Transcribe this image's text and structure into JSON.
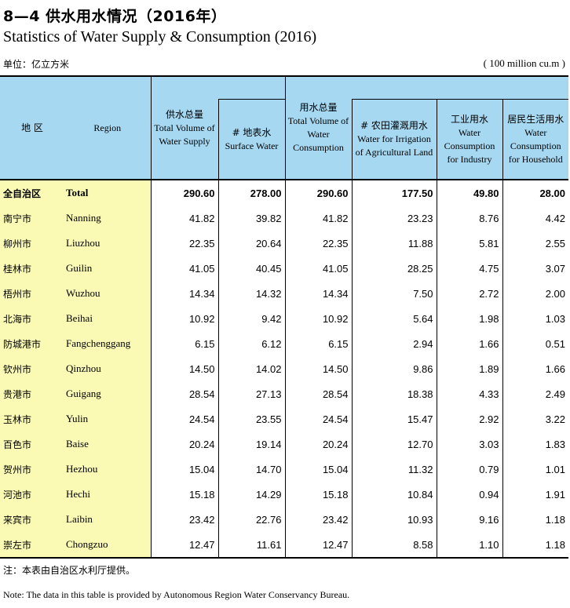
{
  "title_cn": "8—4 供水用水情况（2016年）",
  "title_en": "Statistics of Water Supply & Consumption (2016)",
  "unit_cn": "单位：亿立方米",
  "unit_en": "( 100 million cu.m )",
  "headers": {
    "region_cn": "地 区",
    "region_en": "Region",
    "supply_cn": "供水总量",
    "supply_en": "Total Volume of Water Supply",
    "surface_cn": "# 地表水",
    "surface_en": "Surface Water",
    "consumption_cn": "用水总量",
    "consumption_en": "Total Volume of Water Consumption",
    "irrigation_cn": "# 农田灌溉用水",
    "irrigation_en": "Water for Irrigation of Agricultural Land",
    "industry_cn": "工业用水",
    "industry_en": "Water Consumption for Industry",
    "household_cn": "居民生活用水",
    "household_en": "Water Consumption for Household"
  },
  "rows": [
    {
      "cn": "全自治区",
      "en": "Total",
      "supply": "290.60",
      "surface": "278.00",
      "consumption": "290.60",
      "irrigation": "177.50",
      "industry": "49.80",
      "household": "28.00"
    },
    {
      "cn": "南宁市",
      "en": "Nanning",
      "supply": "41.82",
      "surface": "39.82",
      "consumption": "41.82",
      "irrigation": "23.23",
      "industry": "8.76",
      "household": "4.42"
    },
    {
      "cn": "柳州市",
      "en": "Liuzhou",
      "supply": "22.35",
      "surface": "20.64",
      "consumption": "22.35",
      "irrigation": "11.88",
      "industry": "5.81",
      "household": "2.55"
    },
    {
      "cn": "桂林市",
      "en": "Guilin",
      "supply": "41.05",
      "surface": "40.45",
      "consumption": "41.05",
      "irrigation": "28.25",
      "industry": "4.75",
      "household": "3.07"
    },
    {
      "cn": "梧州市",
      "en": "Wuzhou",
      "supply": "14.34",
      "surface": "14.32",
      "consumption": "14.34",
      "irrigation": "7.50",
      "industry": "2.72",
      "household": "2.00"
    },
    {
      "cn": "北海市",
      "en": "Beihai",
      "supply": "10.92",
      "surface": "9.42",
      "consumption": "10.92",
      "irrigation": "5.64",
      "industry": "1.98",
      "household": "1.03"
    },
    {
      "cn": "防城港市",
      "en": "Fangchenggang",
      "supply": "6.15",
      "surface": "6.12",
      "consumption": "6.15",
      "irrigation": "2.94",
      "industry": "1.66",
      "household": "0.51"
    },
    {
      "cn": "钦州市",
      "en": "Qinzhou",
      "supply": "14.50",
      "surface": "14.02",
      "consumption": "14.50",
      "irrigation": "9.86",
      "industry": "1.89",
      "household": "1.66"
    },
    {
      "cn": "贵港市",
      "en": "Guigang",
      "supply": "28.54",
      "surface": "27.13",
      "consumption": "28.54",
      "irrigation": "18.38",
      "industry": "4.33",
      "household": "2.49"
    },
    {
      "cn": "玉林市",
      "en": "Yulin",
      "supply": "24.54",
      "surface": "23.55",
      "consumption": "24.54",
      "irrigation": "15.47",
      "industry": "2.92",
      "household": "3.22"
    },
    {
      "cn": "百色市",
      "en": "Baise",
      "supply": "20.24",
      "surface": "19.14",
      "consumption": "20.24",
      "irrigation": "12.70",
      "industry": "3.03",
      "household": "1.83"
    },
    {
      "cn": "贺州市",
      "en": "Hezhou",
      "supply": "15.04",
      "surface": "14.70",
      "consumption": "15.04",
      "irrigation": "11.32",
      "industry": "0.79",
      "household": "1.01"
    },
    {
      "cn": "河池市",
      "en": "Hechi",
      "supply": "15.18",
      "surface": "14.29",
      "consumption": "15.18",
      "irrigation": "10.84",
      "industry": "0.94",
      "household": "1.91"
    },
    {
      "cn": "来宾市",
      "en": "Laibin",
      "supply": "23.42",
      "surface": "22.76",
      "consumption": "23.42",
      "irrigation": "10.93",
      "industry": "9.16",
      "household": "1.18"
    },
    {
      "cn": "崇左市",
      "en": "Chongzuo",
      "supply": "12.47",
      "surface": "11.61",
      "consumption": "12.47",
      "irrigation": "8.58",
      "industry": "1.10",
      "household": "1.18"
    }
  ],
  "note_cn": "注：本表由自治区水利厅提供。",
  "note_en": "Note: The data in this table is provided by Autonomous Region Water Conservancy Bureau."
}
